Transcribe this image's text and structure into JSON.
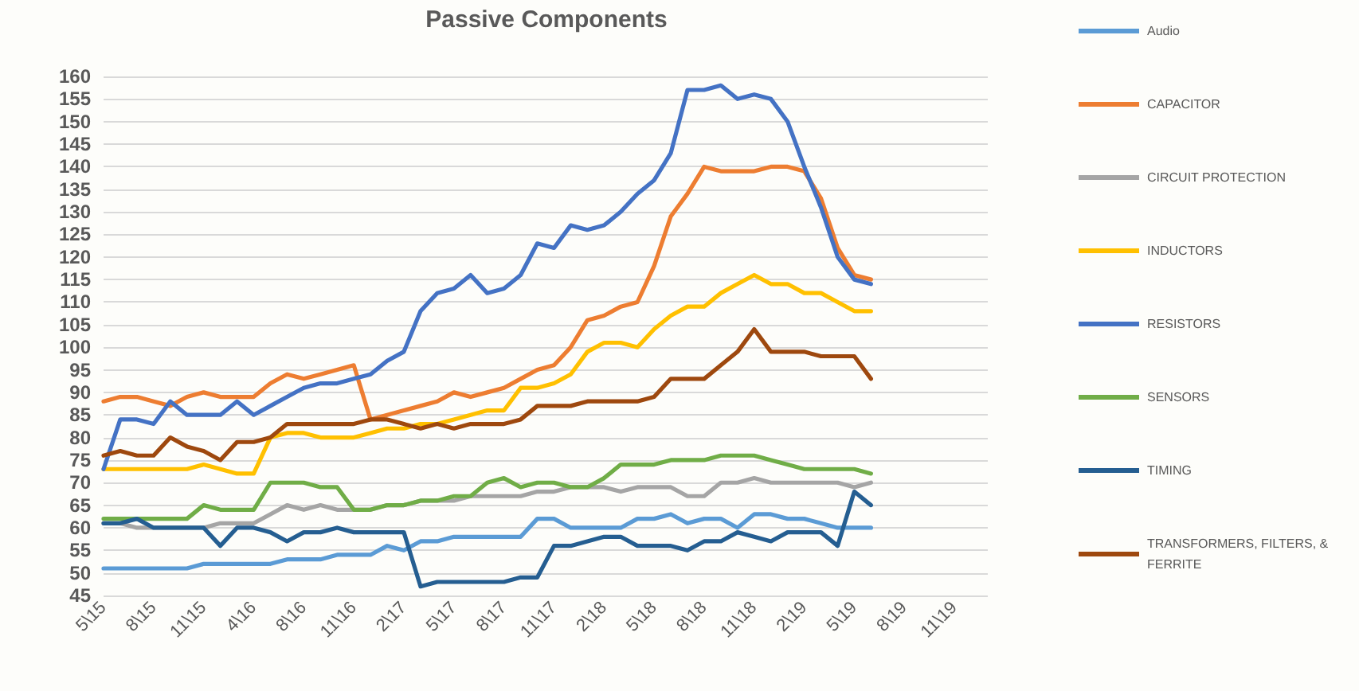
{
  "chart_data": {
    "type": "line",
    "title": "Passive Components",
    "categories": [
      "5\\15",
      null,
      null,
      "8\\15",
      null,
      null,
      "11\\15",
      null,
      null,
      "4\\16",
      null,
      null,
      "8\\16",
      null,
      null,
      "11\\16",
      null,
      null,
      "2\\17",
      null,
      null,
      "5\\17",
      null,
      null,
      "8\\17",
      null,
      null,
      "11\\17",
      null,
      null,
      "2\\18",
      null,
      null,
      "5\\18",
      null,
      null,
      "8\\18",
      null,
      null,
      "11\\18",
      null,
      null,
      "2\\19",
      null,
      null,
      "5\\19",
      null,
      null,
      "8\\19",
      null,
      null,
      "11\\19",
      null,
      null
    ],
    "ylim": [
      45,
      160
    ],
    "yticks": [
      45,
      50,
      55,
      60,
      65,
      70,
      75,
      80,
      85,
      90,
      95,
      100,
      105,
      110,
      115,
      120,
      125,
      130,
      135,
      140,
      145,
      150,
      155,
      160
    ],
    "grid": "y",
    "legend": "right",
    "marker": "none",
    "line_style": "solid",
    "series": [
      {
        "name": "Audio",
        "color": "#5b9bd5",
        "values": [
          51,
          51,
          51,
          51,
          51,
          51,
          52,
          52,
          52,
          52,
          52,
          53,
          53,
          53,
          54,
          54,
          54,
          56,
          55,
          57,
          57,
          58,
          58,
          58,
          58,
          58,
          62,
          62,
          60,
          60,
          60,
          60,
          62,
          62,
          63,
          61,
          62,
          62,
          60,
          63,
          63,
          62,
          62,
          61,
          60,
          60,
          60,
          null,
          null,
          null,
          null,
          null,
          null,
          null
        ]
      },
      {
        "name": "CAPACITOR",
        "color": "#ed7d31",
        "values": [
          88,
          89,
          89,
          88,
          87,
          89,
          90,
          89,
          89,
          89,
          92,
          94,
          93,
          94,
          95,
          96,
          84,
          85,
          86,
          87,
          88,
          90,
          89,
          90,
          91,
          93,
          95,
          96,
          100,
          106,
          107,
          109,
          110,
          118,
          129,
          134,
          140,
          139,
          139,
          139,
          140,
          140,
          139,
          133,
          122,
          116,
          115,
          null,
          null,
          null,
          null,
          null,
          null,
          null
        ]
      },
      {
        "name": "CIRCUIT PROTECTION",
        "color": "#a5a5a5",
        "values": [
          61,
          61,
          60,
          60,
          60,
          60,
          60,
          61,
          61,
          61,
          63,
          65,
          64,
          65,
          64,
          64,
          64,
          65,
          65,
          66,
          66,
          66,
          67,
          67,
          67,
          67,
          68,
          68,
          69,
          69,
          69,
          68,
          69,
          69,
          69,
          67,
          67,
          70,
          70,
          71,
          70,
          70,
          70,
          70,
          70,
          69,
          70,
          null,
          null,
          null,
          null,
          null,
          null,
          null
        ]
      },
      {
        "name": "INDUCTORS",
        "color": "#ffc000",
        "values": [
          73,
          73,
          73,
          73,
          73,
          73,
          74,
          73,
          72,
          72,
          80,
          81,
          81,
          80,
          80,
          80,
          81,
          82,
          82,
          83,
          83,
          84,
          85,
          86,
          86,
          91,
          91,
          92,
          94,
          99,
          101,
          101,
          100,
          104,
          107,
          109,
          109,
          112,
          114,
          116,
          114,
          114,
          112,
          112,
          110,
          108,
          108,
          null,
          null,
          null,
          null,
          null,
          null,
          null
        ]
      },
      {
        "name": "RESISTORS",
        "color": "#4472c4",
        "values": [
          73,
          84,
          84,
          83,
          88,
          85,
          85,
          85,
          88,
          85,
          87,
          89,
          91,
          92,
          92,
          93,
          94,
          97,
          99,
          108,
          112,
          113,
          116,
          112,
          113,
          116,
          123,
          122,
          127,
          126,
          127,
          130,
          134,
          137,
          143,
          157,
          157,
          158,
          155,
          156,
          155,
          150,
          140,
          131,
          120,
          115,
          114,
          null,
          null,
          null,
          null,
          null,
          null,
          null
        ]
      },
      {
        "name": "SENSORS",
        "color": "#70ad47",
        "values": [
          62,
          62,
          62,
          62,
          62,
          62,
          65,
          64,
          64,
          64,
          70,
          70,
          70,
          69,
          69,
          64,
          64,
          65,
          65,
          66,
          66,
          67,
          67,
          70,
          71,
          69,
          70,
          70,
          69,
          69,
          71,
          74,
          74,
          74,
          75,
          75,
          75,
          76,
          76,
          76,
          75,
          74,
          73,
          73,
          73,
          73,
          72,
          null,
          null,
          null,
          null,
          null,
          null,
          null
        ]
      },
      {
        "name": "TIMING",
        "color": "#255e91",
        "values": [
          61,
          61,
          62,
          60,
          60,
          60,
          60,
          56,
          60,
          60,
          59,
          57,
          59,
          59,
          60,
          59,
          59,
          59,
          59,
          47,
          48,
          48,
          48,
          48,
          48,
          49,
          49,
          56,
          56,
          57,
          58,
          58,
          56,
          56,
          56,
          55,
          57,
          57,
          59,
          58,
          57,
          59,
          59,
          59,
          56,
          68,
          65,
          null,
          null,
          null,
          null,
          null,
          null,
          null
        ]
      },
      {
        "name": "TRANSFORMERS, FILTERS, & FERRITE",
        "color": "#9e480e",
        "values": [
          76,
          77,
          76,
          76,
          80,
          78,
          77,
          75,
          79,
          79,
          80,
          83,
          83,
          83,
          83,
          83,
          84,
          84,
          83,
          82,
          83,
          82,
          83,
          83,
          83,
          84,
          87,
          87,
          87,
          88,
          88,
          88,
          88,
          89,
          93,
          93,
          93,
          96,
          99,
          104,
          99,
          99,
          99,
          98,
          98,
          98,
          93,
          null,
          null,
          null,
          null,
          null,
          null,
          null
        ]
      }
    ]
  }
}
